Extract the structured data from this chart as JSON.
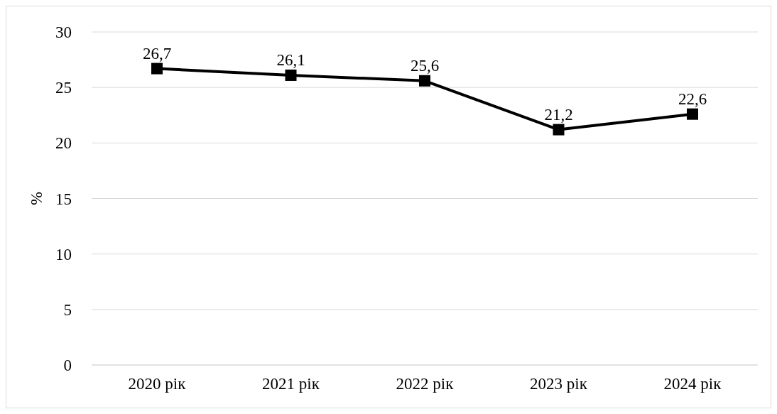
{
  "chart_data": {
    "type": "line",
    "ylabel": "%",
    "categories": [
      "2020 рік",
      "2021 рік",
      "2022 рік",
      "2023 рік",
      "2024 рік"
    ],
    "series": [
      {
        "color": "#000000",
        "values": [
          26.7,
          26.1,
          25.6,
          21.2,
          22.6
        ],
        "value_labels": [
          "26,7",
          "26,1",
          "25,6",
          "21,2",
          "22,6"
        ]
      }
    ],
    "ylim": [
      0,
      30
    ],
    "yticks": [
      0,
      5,
      10,
      15,
      20,
      25,
      30
    ],
    "grid": "y",
    "legend": false,
    "marker": "square",
    "line_style": "solid"
  }
}
